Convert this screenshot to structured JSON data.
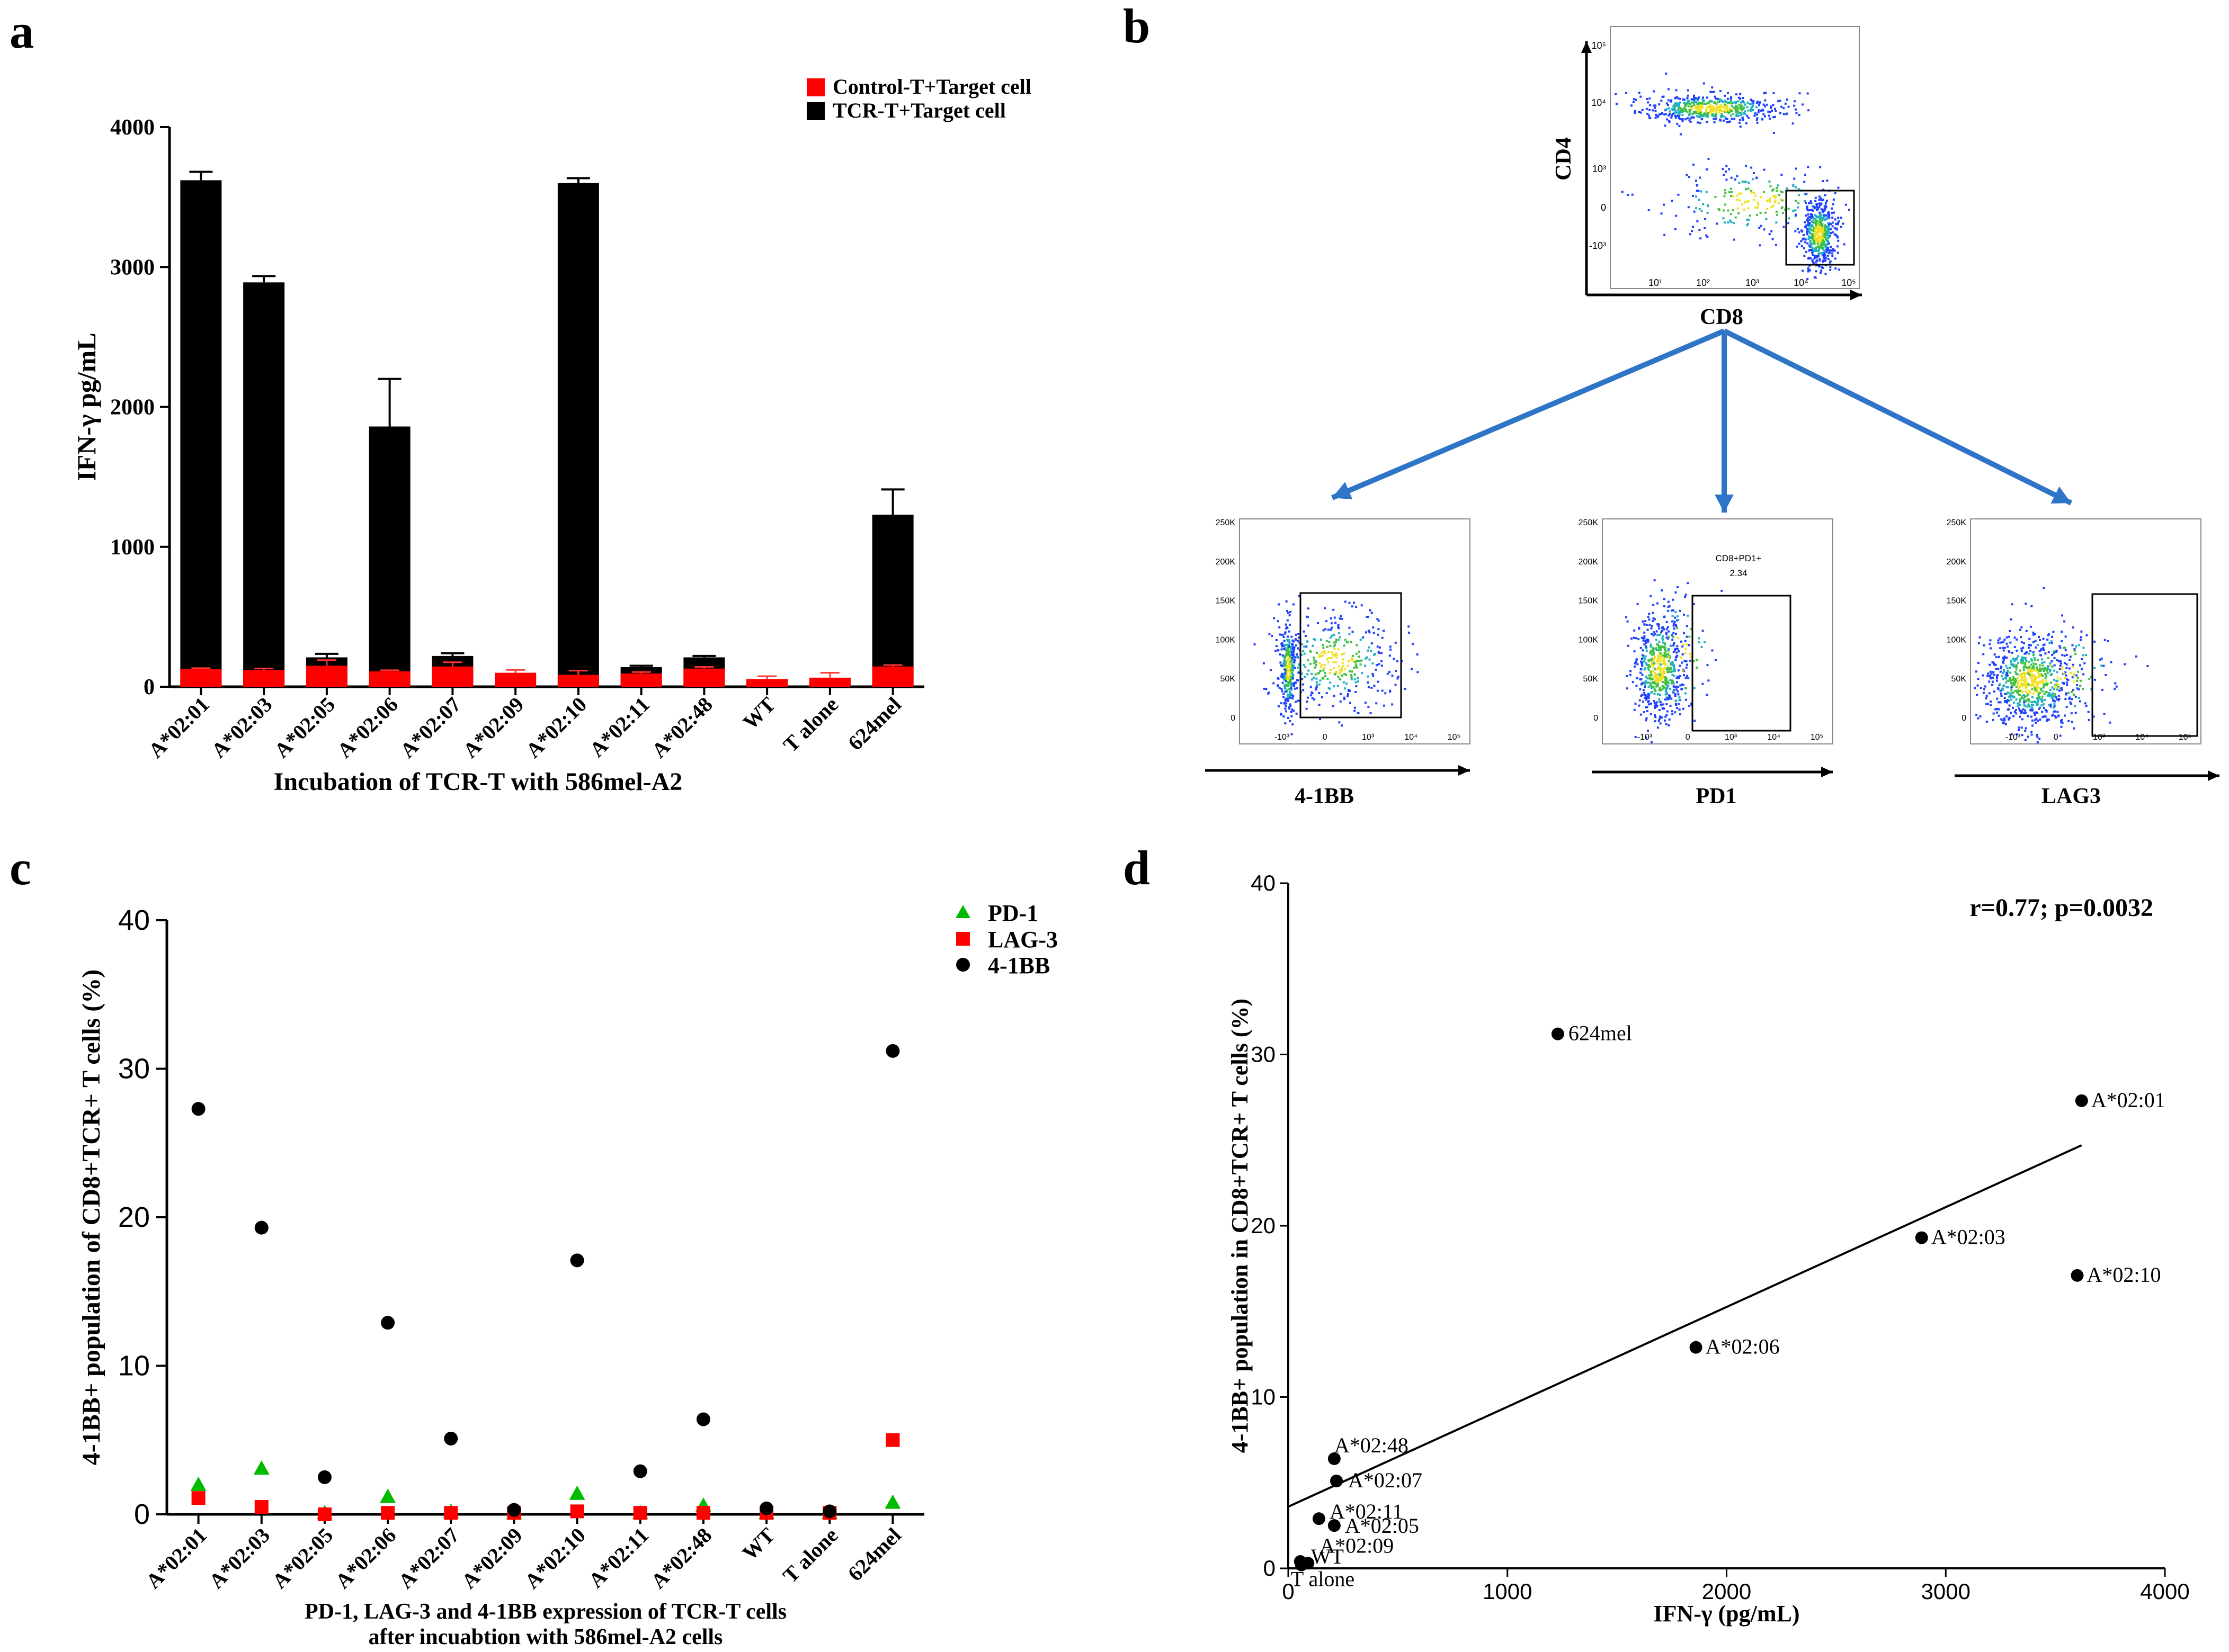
{
  "panel_labels": {
    "a": "a",
    "b": "b",
    "c": "c",
    "d": "d"
  },
  "chart_data": [
    {
      "panel": "a",
      "type": "bar",
      "title": "",
      "xlabel": "Incubation of TCR-T with 586mel-A2",
      "ylabel": "IFN-γ pg/mL",
      "ylim": [
        0,
        4000
      ],
      "yticks": [
        0,
        1000,
        2000,
        3000,
        4000
      ],
      "legend_position": "top-right",
      "categories": [
        "A*02:01",
        "A*02:03",
        "A*02:05",
        "A*02:06",
        "A*02:07",
        "A*02:09",
        "A*02:10",
        "A*02:11",
        "A*02:48",
        "WT",
        "T alone",
        "624mel"
      ],
      "series": [
        {
          "name": "TCR-T+Target cell",
          "color": "#000000",
          "values": [
            3620,
            2890,
            210,
            1860,
            220,
            90,
            3600,
            140,
            210,
            55,
            60,
            1230
          ],
          "errors": [
            60,
            45,
            25,
            340,
            20,
            0,
            35,
            10,
            10,
            0,
            0,
            180
          ]
        },
        {
          "name": "Control-T+Target cell",
          "color": "#ff0000",
          "values": [
            125,
            120,
            150,
            110,
            145,
            100,
            85,
            95,
            130,
            55,
            65,
            145
          ],
          "errors": [
            8,
            10,
            40,
            8,
            30,
            20,
            30,
            10,
            12,
            20,
            35,
            10
          ]
        }
      ]
    },
    {
      "panel": "c",
      "type": "scatter",
      "title": "",
      "xlabel": "PD-1, LAG-3 and 4-1BB expression of TCR-T cells after incuabtion with 586mel-A2 cells",
      "xlabel_lines": [
        "PD-1, LAG-3 and 4-1BB expression of TCR-T cells",
        "after incuabtion with 586mel-A2 cells"
      ],
      "ylabel": "4-1BB+ population of CD8+TCR+ T cells (%)",
      "ylim": [
        0,
        40
      ],
      "yticks": [
        0,
        10,
        20,
        30,
        40
      ],
      "legend_position": "top-right",
      "categories": [
        "A*02:01",
        "A*02:03",
        "A*02:05",
        "A*02:06",
        "A*02:07",
        "A*02:09",
        "A*02:10",
        "A*02:11",
        "A*02:48",
        "WT",
        "T alone",
        "624mel"
      ],
      "series": [
        {
          "name": "PD-1",
          "marker": "triangle",
          "color": "#00bb00",
          "values": [
            2.0,
            3.1,
            0.1,
            1.2,
            0.2,
            0.1,
            1.4,
            0.1,
            0.6,
            0.1,
            0.1,
            0.8
          ]
        },
        {
          "name": "LAG-3",
          "marker": "square",
          "color": "#ff0000",
          "values": [
            1.1,
            0.5,
            0.0,
            0.1,
            0.1,
            0.1,
            0.2,
            0.1,
            0.1,
            0.1,
            0.1,
            5.0
          ]
        },
        {
          "name": "4-1BB",
          "marker": "circle",
          "color": "#000000",
          "values": [
            27.3,
            19.3,
            2.5,
            12.9,
            5.1,
            0.3,
            17.1,
            2.9,
            6.4,
            0.4,
            0.2,
            31.2
          ]
        }
      ]
    },
    {
      "panel": "d",
      "type": "scatter",
      "title": "",
      "annotation": "r=0.77; p=0.0032",
      "xlabel": "IFN-γ (pg/mL)",
      "ylabel": "4-1BB+ population in CD8+TCR+ T cells (%)",
      "xlim": [
        0,
        4000
      ],
      "ylim": [
        0,
        40
      ],
      "xticks": [
        0,
        1000,
        2000,
        3000,
        4000
      ],
      "yticks": [
        0,
        10,
        20,
        30,
        40
      ],
      "points": [
        {
          "label": "624mel",
          "x": 1230,
          "y": 31.2
        },
        {
          "label": "A*02:01",
          "x": 3620,
          "y": 27.3
        },
        {
          "label": "A*02:03",
          "x": 2890,
          "y": 19.3
        },
        {
          "label": "A*02:10",
          "x": 3600,
          "y": 17.1
        },
        {
          "label": "A*02:06",
          "x": 1860,
          "y": 12.9
        },
        {
          "label": "A*02:48",
          "x": 210,
          "y": 6.4
        },
        {
          "label": "A*02:07",
          "x": 220,
          "y": 5.1
        },
        {
          "label": "A*02:11",
          "x": 140,
          "y": 2.9
        },
        {
          "label": "A*02:05",
          "x": 210,
          "y": 2.5
        },
        {
          "label": "A*02:09",
          "x": 90,
          "y": 0.3
        },
        {
          "label": "WT",
          "x": 55,
          "y": 0.4
        },
        {
          "label": "T alone",
          "x": 60,
          "y": 0.2
        }
      ],
      "fit_line": {
        "x": [
          0,
          3620
        ],
        "y": [
          3.6,
          24.7
        ]
      }
    }
  ],
  "panel_b": {
    "top_plot": {
      "xlabel": "CD8",
      "ylabel": "CD4",
      "xticks": [
        "10¹",
        "10²",
        "10³",
        "10⁴",
        "10⁵"
      ],
      "yticks": [
        "10⁵",
        "10⁴",
        "10³",
        "0",
        "-10³"
      ]
    },
    "sub_plots": [
      {
        "xlabel": "4-1BB",
        "gate_label": "",
        "gate_value": ""
      },
      {
        "xlabel": "PD1",
        "gate_label": "CD8+PD1+",
        "gate_value": "2.34"
      },
      {
        "xlabel": "LAG3",
        "gate_label": "",
        "gate_value": ""
      }
    ],
    "sub_yticks": [
      "250K",
      "200K",
      "150K",
      "100K",
      "50K",
      "0"
    ],
    "sub_xticks": [
      "-10³",
      "0",
      "10³",
      "10⁴",
      "10⁵"
    ],
    "arrow_color": "#2e75c7"
  }
}
